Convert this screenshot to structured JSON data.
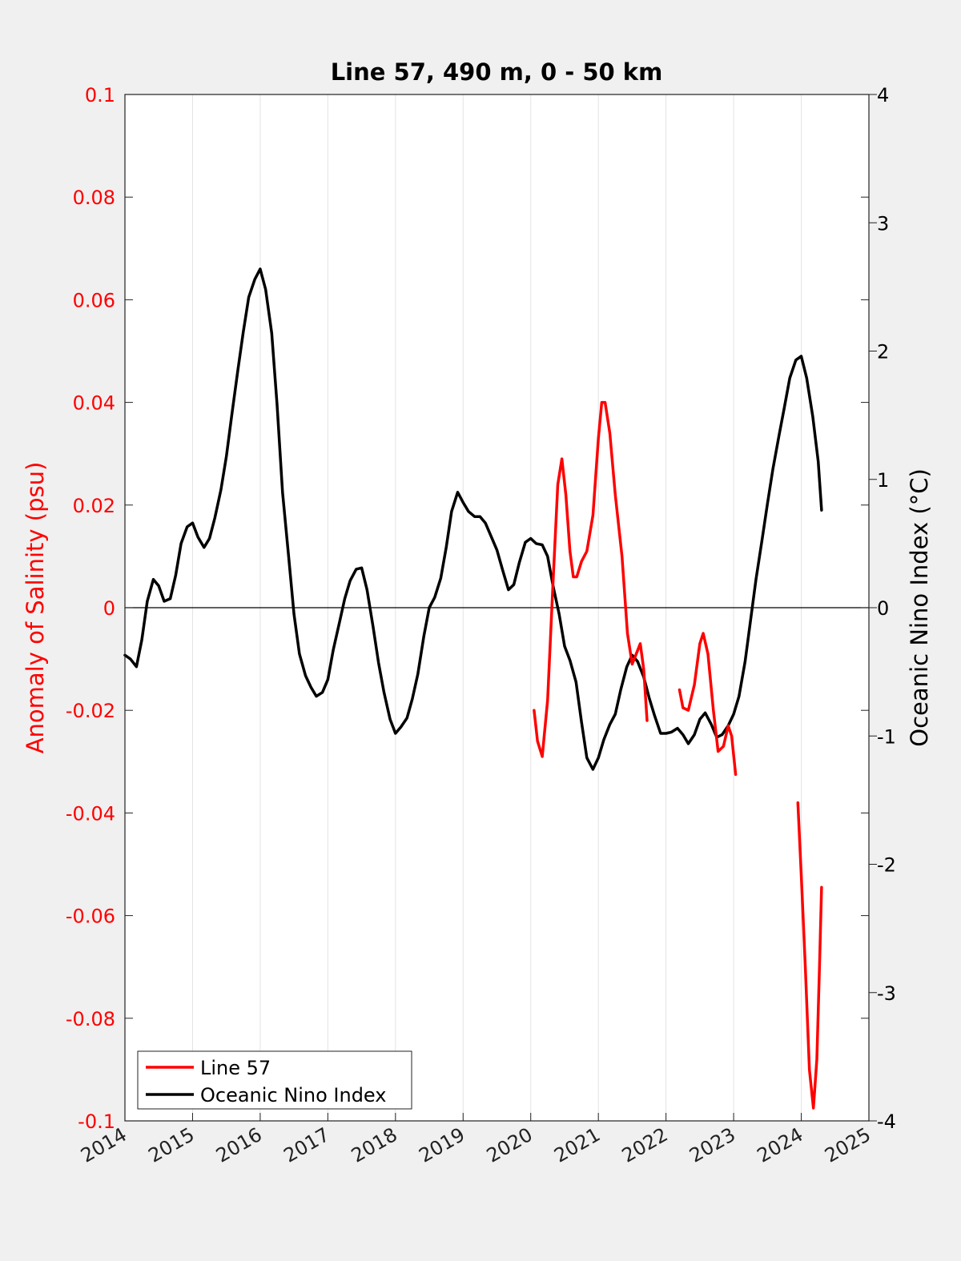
{
  "chart_data": {
    "type": "line",
    "title": "Line 57, 490 m, 0 - 50 km",
    "xlabel": "",
    "ylabel_left": "Anomaly of Salinity (psu)",
    "ylabel_right": "Oceanic Nino Index (°C)",
    "xlim": [
      2014,
      2025
    ],
    "ylim_left": [
      -0.1,
      0.1
    ],
    "ylim_right": [
      -4,
      4
    ],
    "x_tick_labels": [
      "2014",
      "2015",
      "2016",
      "2017",
      "2018",
      "2019",
      "2020",
      "2021",
      "2022",
      "2023",
      "2024",
      "2025"
    ],
    "y_left_tick_labels": [
      "0.1",
      "0.08",
      "0.06",
      "0.04",
      "0.02",
      "0",
      "-0.02",
      "-0.04",
      "-0.06",
      "-0.08",
      "-0.1"
    ],
    "y_right_tick_labels": [
      "4",
      "3",
      "2",
      "1",
      "0",
      "-1",
      "-2",
      "-3",
      "-4"
    ],
    "grid": "vertical",
    "zero_line": true,
    "legend_position": "bottom-left",
    "colors": {
      "salinity": "#ff0000",
      "oni": "#000000",
      "left_axis": "#ff0000",
      "right_axis": "#000000"
    },
    "series": [
      {
        "name": "Line 57",
        "axis": "left",
        "color": "#ff0000",
        "segments": [
          [
            [
              2020.05,
              -0.02
            ],
            [
              2020.1,
              -0.026
            ],
            [
              2020.17,
              -0.029
            ],
            [
              2020.25,
              -0.018
            ],
            [
              2020.33,
              0.005
            ],
            [
              2020.4,
              0.024
            ],
            [
              2020.46,
              0.029
            ],
            [
              2020.52,
              0.022
            ],
            [
              2020.58,
              0.011
            ],
            [
              2020.63,
              0.006
            ],
            [
              2020.68,
              0.006
            ],
            [
              2020.75,
              0.009
            ],
            [
              2020.83,
              0.011
            ],
            [
              2020.92,
              0.018
            ],
            [
              2021.0,
              0.033
            ],
            [
              2021.05,
              0.04
            ],
            [
              2021.1,
              0.04
            ],
            [
              2021.17,
              0.034
            ],
            [
              2021.25,
              0.022
            ],
            [
              2021.35,
              0.01
            ],
            [
              2021.43,
              -0.005
            ],
            [
              2021.5,
              -0.011
            ],
            [
              2021.56,
              -0.009
            ],
            [
              2021.62,
              -0.007
            ],
            [
              2021.67,
              -0.012
            ],
            [
              2021.72,
              -0.022
            ]
          ],
          [
            [
              2022.2,
              -0.016
            ],
            [
              2022.25,
              -0.0195
            ],
            [
              2022.33,
              -0.02
            ],
            [
              2022.42,
              -0.015
            ],
            [
              2022.5,
              -0.007
            ],
            [
              2022.55,
              -0.005
            ],
            [
              2022.62,
              -0.009
            ],
            [
              2022.7,
              -0.02
            ],
            [
              2022.77,
              -0.028
            ],
            [
              2022.85,
              -0.027
            ],
            [
              2022.92,
              -0.023
            ],
            [
              2022.97,
              -0.025
            ],
            [
              2023.03,
              -0.0325
            ]
          ],
          [
            [
              2023.95,
              -0.038
            ],
            [
              2024.0,
              -0.052
            ],
            [
              2024.06,
              -0.07
            ],
            [
              2024.12,
              -0.09
            ],
            [
              2024.18,
              -0.0975
            ],
            [
              2024.23,
              -0.088
            ],
            [
              2024.27,
              -0.07
            ],
            [
              2024.3,
              -0.0545
            ]
          ]
        ]
      },
      {
        "name": "Oceanic Nino Index",
        "axis": "right",
        "color": "#000000",
        "segments": [
          [
            [
              2014.0,
              -0.37
            ],
            [
              2014.08,
              -0.4
            ],
            [
              2014.17,
              -0.46
            ],
            [
              2014.25,
              -0.25
            ],
            [
              2014.33,
              0.05
            ],
            [
              2014.42,
              0.22
            ],
            [
              2014.5,
              0.17
            ],
            [
              2014.58,
              0.05
            ],
            [
              2014.67,
              0.07
            ],
            [
              2014.75,
              0.25
            ],
            [
              2014.83,
              0.5
            ],
            [
              2014.92,
              0.63
            ],
            [
              2015.0,
              0.66
            ],
            [
              2015.08,
              0.55
            ],
            [
              2015.17,
              0.47
            ],
            [
              2015.25,
              0.54
            ],
            [
              2015.33,
              0.7
            ],
            [
              2015.42,
              0.92
            ],
            [
              2015.5,
              1.18
            ],
            [
              2015.58,
              1.5
            ],
            [
              2015.67,
              1.85
            ],
            [
              2015.75,
              2.15
            ],
            [
              2015.83,
              2.42
            ],
            [
              2015.92,
              2.56
            ],
            [
              2016.0,
              2.64
            ],
            [
              2016.08,
              2.48
            ],
            [
              2016.17,
              2.14
            ],
            [
              2016.25,
              1.58
            ],
            [
              2016.33,
              0.9
            ],
            [
              2016.42,
              0.4
            ],
            [
              2016.5,
              -0.05
            ],
            [
              2016.58,
              -0.36
            ],
            [
              2016.67,
              -0.53
            ],
            [
              2016.75,
              -0.62
            ],
            [
              2016.83,
              -0.69
            ],
            [
              2016.92,
              -0.66
            ],
            [
              2017.0,
              -0.56
            ],
            [
              2017.08,
              -0.33
            ],
            [
              2017.17,
              -0.12
            ],
            [
              2017.25,
              0.07
            ],
            [
              2017.33,
              0.21
            ],
            [
              2017.42,
              0.3
            ],
            [
              2017.5,
              0.31
            ],
            [
              2017.58,
              0.14
            ],
            [
              2017.67,
              -0.15
            ],
            [
              2017.75,
              -0.43
            ],
            [
              2017.83,
              -0.66
            ],
            [
              2017.92,
              -0.87
            ],
            [
              2018.0,
              -0.98
            ],
            [
              2018.08,
              -0.93
            ],
            [
              2018.17,
              -0.86
            ],
            [
              2018.25,
              -0.71
            ],
            [
              2018.33,
              -0.52
            ],
            [
              2018.42,
              -0.22
            ],
            [
              2018.5,
              0.0
            ],
            [
              2018.58,
              0.08
            ],
            [
              2018.67,
              0.23
            ],
            [
              2018.75,
              0.47
            ],
            [
              2018.83,
              0.75
            ],
            [
              2018.92,
              0.9
            ],
            [
              2019.0,
              0.82
            ],
            [
              2019.08,
              0.75
            ],
            [
              2019.17,
              0.71
            ],
            [
              2019.25,
              0.71
            ],
            [
              2019.33,
              0.66
            ],
            [
              2019.42,
              0.55
            ],
            [
              2019.5,
              0.45
            ],
            [
              2019.58,
              0.3
            ],
            [
              2019.67,
              0.14
            ],
            [
              2019.75,
              0.18
            ],
            [
              2019.83,
              0.35
            ],
            [
              2019.92,
              0.51
            ],
            [
              2020.0,
              0.54
            ],
            [
              2020.08,
              0.5
            ],
            [
              2020.17,
              0.49
            ],
            [
              2020.25,
              0.4
            ],
            [
              2020.33,
              0.17
            ],
            [
              2020.42,
              -0.05
            ],
            [
              2020.5,
              -0.3
            ],
            [
              2020.58,
              -0.41
            ],
            [
              2020.67,
              -0.58
            ],
            [
              2020.75,
              -0.89
            ],
            [
              2020.83,
              -1.17
            ],
            [
              2020.92,
              -1.26
            ],
            [
              2021.0,
              -1.17
            ],
            [
              2021.08,
              -1.03
            ],
            [
              2021.17,
              -0.91
            ],
            [
              2021.25,
              -0.83
            ],
            [
              2021.33,
              -0.64
            ],
            [
              2021.42,
              -0.46
            ],
            [
              2021.5,
              -0.37
            ],
            [
              2021.58,
              -0.42
            ],
            [
              2021.67,
              -0.54
            ],
            [
              2021.75,
              -0.7
            ],
            [
              2021.83,
              -0.84
            ],
            [
              2021.92,
              -0.98
            ],
            [
              2022.0,
              -0.98
            ],
            [
              2022.08,
              -0.97
            ],
            [
              2022.17,
              -0.94
            ],
            [
              2022.25,
              -0.99
            ],
            [
              2022.33,
              -1.06
            ],
            [
              2022.42,
              -0.99
            ],
            [
              2022.5,
              -0.87
            ],
            [
              2022.58,
              -0.82
            ],
            [
              2022.67,
              -0.91
            ],
            [
              2022.75,
              -1.01
            ],
            [
              2022.83,
              -0.99
            ],
            [
              2022.92,
              -0.92
            ],
            [
              2023.0,
              -0.83
            ],
            [
              2023.08,
              -0.69
            ],
            [
              2023.17,
              -0.42
            ],
            [
              2023.25,
              -0.1
            ],
            [
              2023.33,
              0.22
            ],
            [
              2023.42,
              0.53
            ],
            [
              2023.5,
              0.81
            ],
            [
              2023.58,
              1.08
            ],
            [
              2023.67,
              1.34
            ],
            [
              2023.75,
              1.56
            ],
            [
              2023.83,
              1.79
            ],
            [
              2023.92,
              1.93
            ],
            [
              2024.0,
              1.96
            ],
            [
              2024.08,
              1.79
            ],
            [
              2024.17,
              1.49
            ],
            [
              2024.25,
              1.14
            ],
            [
              2024.3,
              0.76
            ]
          ]
        ]
      }
    ]
  }
}
